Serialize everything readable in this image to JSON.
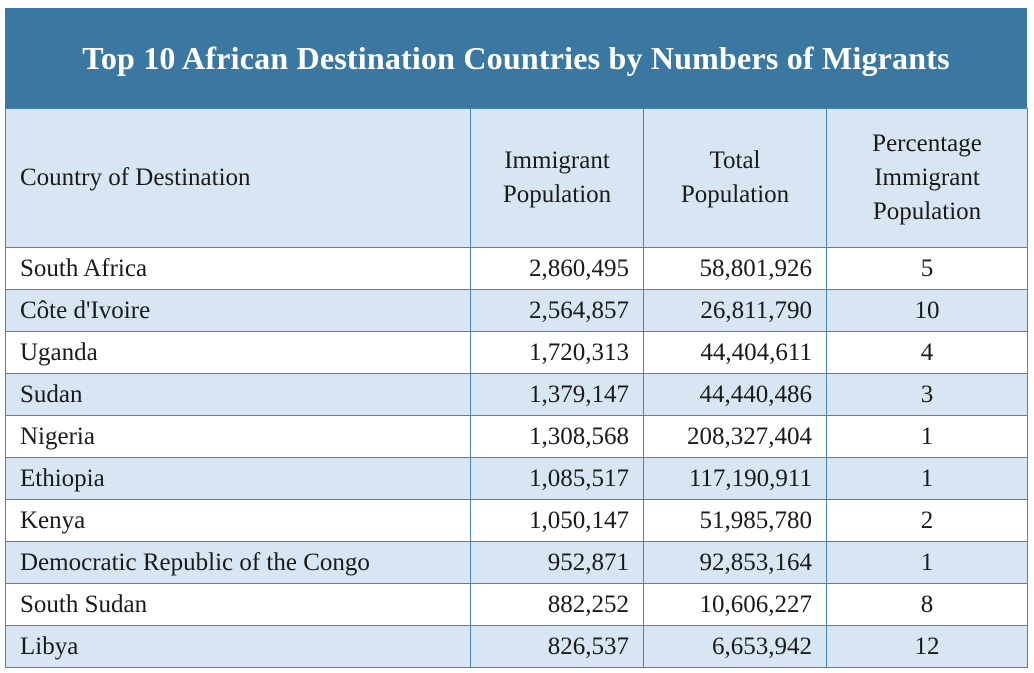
{
  "chart_data": {
    "type": "table",
    "title": "Top 10 African Destination Countries by Numbers of Migrants",
    "headers": [
      "Country of Destination",
      "Immigrant Population",
      "Total Population",
      "Percentage Immigrant Population"
    ],
    "rows": [
      {
        "country": "South Africa",
        "immigrant": "2,860,495",
        "total": "58,801,926",
        "percent": "5"
      },
      {
        "country": "Côte d'Ivoire",
        "immigrant": "2,564,857",
        "total": "26,811,790",
        "percent": "10"
      },
      {
        "country": "Uganda",
        "immigrant": "1,720,313",
        "total": "44,404,611",
        "percent": "4"
      },
      {
        "country": "Sudan",
        "immigrant": "1,379,147",
        "total": "44,440,486",
        "percent": "3"
      },
      {
        "country": "Nigeria",
        "immigrant": "1,308,568",
        "total": "208,327,404",
        "percent": "1"
      },
      {
        "country": "Ethiopia",
        "immigrant": "1,085,517",
        "total": "117,190,911",
        "percent": "1"
      },
      {
        "country": "Kenya",
        "immigrant": "1,050,147",
        "total": "51,985,780",
        "percent": "2"
      },
      {
        "country": "Democratic Republic of the Congo",
        "immigrant": "952,871",
        "total": "92,853,164",
        "percent": "1"
      },
      {
        "country": "South Sudan",
        "immigrant": "882,252",
        "total": "10,606,227",
        "percent": "8"
      },
      {
        "country": "Libya",
        "immigrant": "826,537",
        "total": "6,653,942",
        "percent": "12"
      }
    ]
  },
  "colors": {
    "header_bar": "#3b78a1",
    "band": "#d7e6f2",
    "grid": "#4a86b5"
  }
}
